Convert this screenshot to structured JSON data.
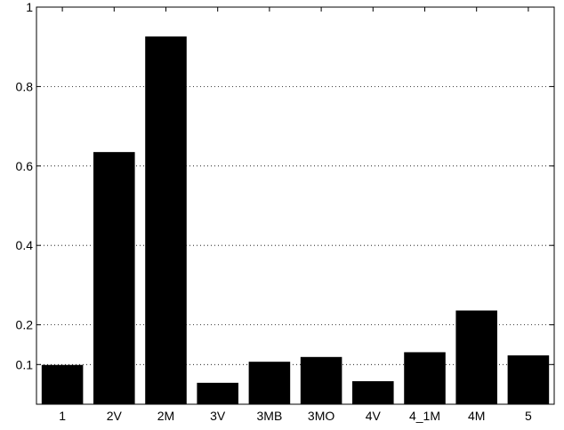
{
  "chart_data": {
    "type": "bar",
    "categories": [
      "1",
      "2V",
      "2M",
      "3V",
      "3MB",
      "3MO",
      "4V",
      "4_1M",
      "4M",
      "5"
    ],
    "values": [
      0.099,
      0.635,
      0.926,
      0.054,
      0.107,
      0.119,
      0.058,
      0.131,
      0.236,
      0.123
    ],
    "ylim": [
      0,
      1
    ],
    "yticks": [
      0.1,
      0.2,
      0.4,
      0.6,
      0.8,
      1
    ],
    "ytick_labels": [
      "0.1",
      "0.2",
      "0.4",
      "0.6",
      "0.8",
      "1"
    ],
    "grid": "horizontal-dotted",
    "bar_color": "#000000",
    "title": "",
    "xlabel": "",
    "ylabel": ""
  }
}
